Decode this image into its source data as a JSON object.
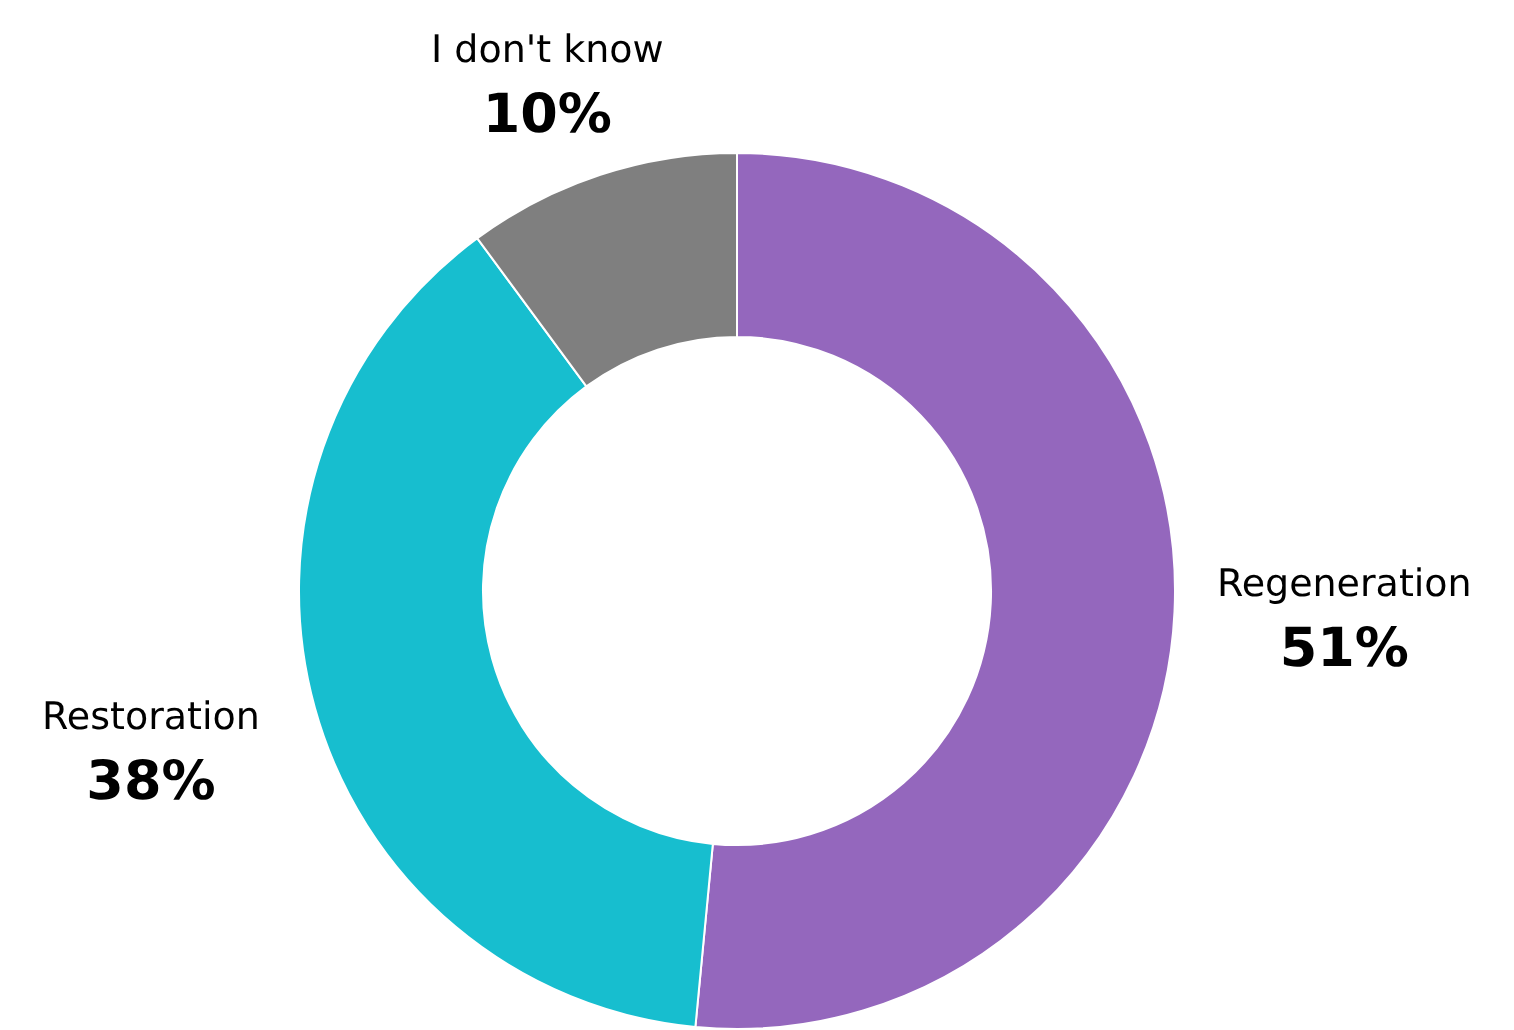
{
  "chart_data": {
    "type": "donut",
    "categories": [
      "Regeneration",
      "Restoration",
      "I don't know"
    ],
    "values": [
      51,
      38,
      10
    ],
    "value_labels": [
      "51%",
      "38%",
      "10%"
    ],
    "colors": [
      "#9467bd",
      "#17becf",
      "#7f7f7f"
    ],
    "legend": false
  }
}
